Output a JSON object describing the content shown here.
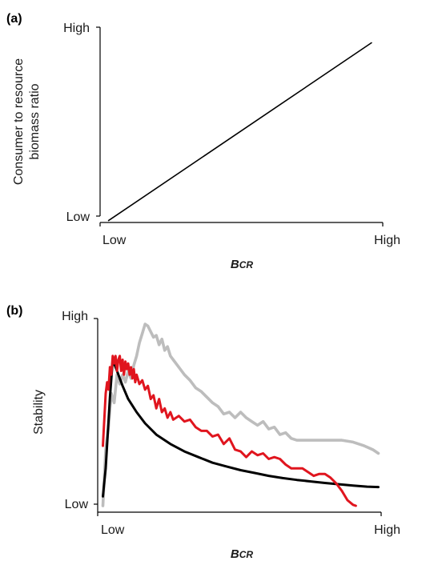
{
  "chart_data": [
    {
      "panel_label": "(a)",
      "type": "line",
      "xlabel": "BCR",
      "xlabel_main": "B",
      "xlabel_sub": "CR",
      "ylabel_line1": "Consumer to resource",
      "ylabel_line2": "biomass ratio",
      "x_ticks": [
        "Low",
        "High"
      ],
      "y_ticks": [
        "Low",
        "High"
      ],
      "xlim": [
        0,
        1
      ],
      "ylim": [
        0,
        1
      ],
      "series": [
        {
          "color": "#000000",
          "x": [
            0.03,
            0.96
          ],
          "y": [
            0.01,
            0.92
          ]
        }
      ]
    },
    {
      "panel_label": "(b)",
      "type": "line",
      "xlabel": "BCR",
      "xlabel_main": "B",
      "xlabel_sub": "CR",
      "ylabel": "Stability",
      "x_ticks": [
        "Low",
        "High"
      ],
      "y_ticks": [
        "Low",
        "High"
      ],
      "xlim": [
        0,
        1
      ],
      "ylim": [
        0,
        1
      ],
      "series": [
        {
          "color": "#000000",
          "x": [
            0.01,
            0.02,
            0.035,
            0.045,
            0.06,
            0.08,
            0.1,
            0.13,
            0.16,
            0.2,
            0.25,
            0.3,
            0.35,
            0.4,
            0.45,
            0.5,
            0.55,
            0.6,
            0.65,
            0.7,
            0.75,
            0.8,
            0.85,
            0.9,
            0.95,
            0.99
          ],
          "y": [
            0.05,
            0.2,
            0.58,
            0.78,
            0.72,
            0.64,
            0.57,
            0.5,
            0.44,
            0.38,
            0.33,
            0.29,
            0.26,
            0.23,
            0.21,
            0.19,
            0.175,
            0.16,
            0.148,
            0.138,
            0.13,
            0.122,
            0.115,
            0.108,
            0.102,
            0.1
          ]
        },
        {
          "color": "#e0151e",
          "x": [
            0.01,
            0.02,
            0.025,
            0.03,
            0.035,
            0.04,
            0.045,
            0.05,
            0.055,
            0.06,
            0.065,
            0.07,
            0.075,
            0.08,
            0.085,
            0.09,
            0.095,
            0.1,
            0.105,
            0.11,
            0.115,
            0.12,
            0.125,
            0.13,
            0.14,
            0.15,
            0.16,
            0.17,
            0.18,
            0.19,
            0.2,
            0.21,
            0.22,
            0.23,
            0.24,
            0.25,
            0.26,
            0.28,
            0.3,
            0.32,
            0.34,
            0.36,
            0.38,
            0.4,
            0.42,
            0.44,
            0.46,
            0.48,
            0.5,
            0.52,
            0.54,
            0.56,
            0.58,
            0.6,
            0.62,
            0.64,
            0.66,
            0.68,
            0.7,
            0.72,
            0.74,
            0.76,
            0.78,
            0.8,
            0.82,
            0.84,
            0.86,
            0.88,
            0.9,
            0.91
          ],
          "y": [
            0.32,
            0.6,
            0.66,
            0.62,
            0.74,
            0.7,
            0.8,
            0.76,
            0.8,
            0.72,
            0.78,
            0.8,
            0.72,
            0.78,
            0.7,
            0.77,
            0.73,
            0.76,
            0.7,
            0.74,
            0.68,
            0.73,
            0.66,
            0.7,
            0.65,
            0.67,
            0.62,
            0.64,
            0.57,
            0.59,
            0.52,
            0.57,
            0.5,
            0.52,
            0.47,
            0.5,
            0.46,
            0.48,
            0.45,
            0.46,
            0.42,
            0.4,
            0.4,
            0.37,
            0.38,
            0.33,
            0.36,
            0.3,
            0.29,
            0.26,
            0.29,
            0.27,
            0.28,
            0.25,
            0.26,
            0.25,
            0.22,
            0.2,
            0.2,
            0.2,
            0.18,
            0.16,
            0.17,
            0.17,
            0.15,
            0.12,
            0.08,
            0.03,
            0.005,
            0.0
          ]
        },
        {
          "color": "#bdbdbd",
          "x": [
            0.01,
            0.02,
            0.03,
            0.04,
            0.05,
            0.06,
            0.07,
            0.08,
            0.09,
            0.1,
            0.11,
            0.12,
            0.13,
            0.14,
            0.15,
            0.16,
            0.17,
            0.18,
            0.19,
            0.2,
            0.21,
            0.22,
            0.23,
            0.24,
            0.25,
            0.26,
            0.28,
            0.3,
            0.32,
            0.34,
            0.36,
            0.38,
            0.4,
            0.42,
            0.44,
            0.46,
            0.48,
            0.5,
            0.52,
            0.54,
            0.56,
            0.58,
            0.6,
            0.62,
            0.64,
            0.66,
            0.68,
            0.7,
            0.74,
            0.78,
            0.82,
            0.86,
            0.9,
            0.94,
            0.97,
            0.99
          ],
          "y": [
            0.0,
            0.3,
            0.42,
            0.6,
            0.55,
            0.7,
            0.65,
            0.7,
            0.66,
            0.72,
            0.68,
            0.75,
            0.8,
            0.87,
            0.92,
            0.97,
            0.96,
            0.93,
            0.9,
            0.91,
            0.86,
            0.89,
            0.83,
            0.85,
            0.8,
            0.78,
            0.74,
            0.7,
            0.67,
            0.63,
            0.61,
            0.58,
            0.55,
            0.53,
            0.49,
            0.5,
            0.47,
            0.5,
            0.47,
            0.45,
            0.43,
            0.45,
            0.41,
            0.42,
            0.38,
            0.39,
            0.36,
            0.35,
            0.35,
            0.35,
            0.35,
            0.35,
            0.34,
            0.32,
            0.3,
            0.28
          ]
        }
      ]
    }
  ]
}
